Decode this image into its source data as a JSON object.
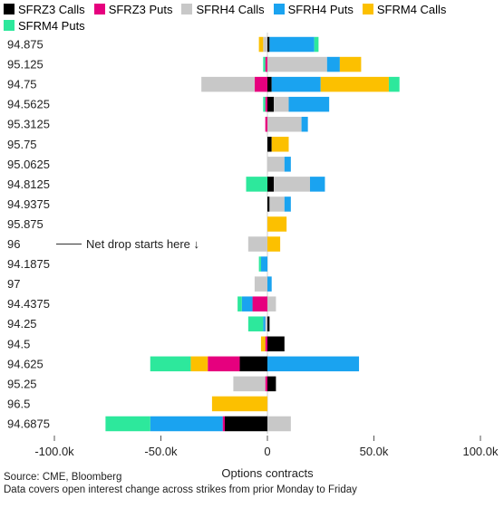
{
  "chart_data": {
    "type": "bar",
    "orientation": "horizontal",
    "stacked": true,
    "xlabel": "Options contracts",
    "xlim": [
      -100000,
      100000
    ],
    "x_ticks": [
      {
        "value": -100000,
        "label": "-100.0k"
      },
      {
        "value": -50000,
        "label": "-50.0k"
      },
      {
        "value": 0,
        "label": "0"
      },
      {
        "value": 50000,
        "label": "50.0k"
      },
      {
        "value": 100000,
        "label": "100.0k"
      }
    ],
    "legend_position": "top",
    "categories": [
      "94.875",
      "95.125",
      "94.75",
      "94.5625",
      "95.3125",
      "95.75",
      "95.0625",
      "94.8125",
      "94.9375",
      "95.875",
      "96",
      "94.1875",
      "97",
      "94.4375",
      "94.25",
      "94.5",
      "94.625",
      "95.25",
      "96.5",
      "94.6875"
    ],
    "series": [
      {
        "name": "SFRZ3 Calls",
        "color": "#000000",
        "values": [
          1000,
          0,
          2000,
          3000,
          0,
          2000,
          0,
          3000,
          1000,
          0,
          0,
          0,
          0,
          0,
          1000,
          8000,
          -13000,
          4000,
          0,
          -20000
        ]
      },
      {
        "name": "SFRZ3 Puts",
        "color": "#e6007e",
        "values": [
          0,
          -1000,
          -6000,
          -1000,
          -1000,
          0,
          0,
          0,
          0,
          0,
          0,
          0,
          0,
          -7000,
          0,
          -1000,
          -15000,
          -1000,
          0,
          -1000
        ]
      },
      {
        "name": "SFRH4 Calls",
        "color": "#c8c8c8",
        "values": [
          -2000,
          28000,
          -25000,
          7000,
          16000,
          0,
          8000,
          17000,
          7000,
          0,
          -9000,
          0,
          -6000,
          4000,
          -1000,
          0,
          0,
          -15000,
          0,
          11000
        ]
      },
      {
        "name": "SFRH4 Puts",
        "color": "#1aa3f0",
        "values": [
          21000,
          6000,
          23000,
          19000,
          3000,
          0,
          3000,
          7000,
          3000,
          0,
          0,
          -3000,
          2000,
          -5000,
          -1000,
          0,
          43000,
          0,
          0,
          -34000
        ]
      },
      {
        "name": "SFRM4 Calls",
        "color": "#fcc000",
        "values": [
          -2000,
          10000,
          32000,
          0,
          0,
          8000,
          0,
          0,
          0,
          9000,
          6000,
          0,
          0,
          0,
          0,
          -2000,
          -8000,
          0,
          -26000,
          0
        ]
      },
      {
        "name": "SFRM4 Puts",
        "color": "#2de89c",
        "values": [
          2000,
          -1000,
          5000,
          -1000,
          0,
          0,
          0,
          -10000,
          0,
          0,
          0,
          -1000,
          0,
          -2000,
          -7000,
          0,
          -19000,
          0,
          0,
          -21000
        ]
      }
    ],
    "annotation": {
      "text": "Net drop starts here",
      "arrow": "↓",
      "category": "96"
    }
  },
  "source": {
    "line1": "Source: CME, Bloomberg",
    "line2": "Data covers open interest change across strikes from prior Monday to Friday"
  }
}
